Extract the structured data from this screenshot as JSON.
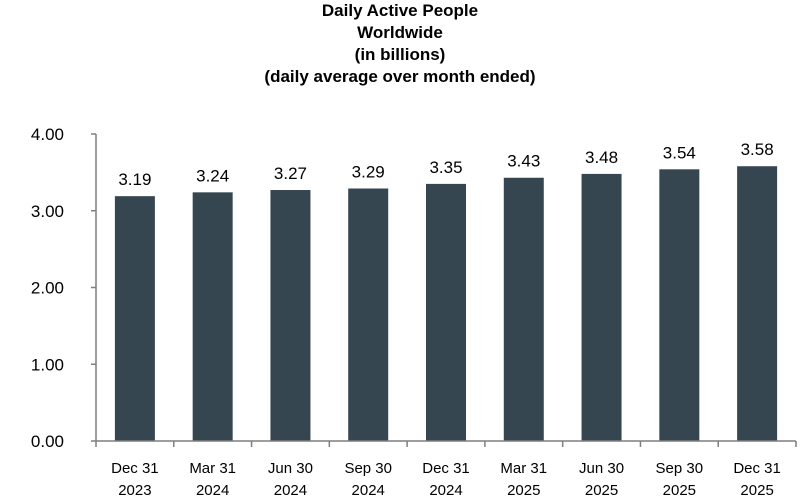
{
  "chart_data": {
    "type": "bar",
    "title": [
      "Daily Active People",
      "Worldwide",
      "(in billions)",
      "(daily average over month ended)"
    ],
    "categories": [
      [
        "Dec 31",
        "2023"
      ],
      [
        "Mar 31",
        "2024"
      ],
      [
        "Jun 30",
        "2024"
      ],
      [
        "Sep 30",
        "2024"
      ],
      [
        "Dec 31",
        "2024"
      ],
      [
        "Mar 31",
        "2025"
      ],
      [
        "Jun 30",
        "2025"
      ],
      [
        "Sep 30",
        "2025"
      ],
      [
        "Dec 31",
        "2025"
      ]
    ],
    "values": [
      3.19,
      3.24,
      3.27,
      3.29,
      3.35,
      3.43,
      3.48,
      3.54,
      3.58
    ],
    "data_labels": [
      "3.19",
      "3.24",
      "3.27",
      "3.29",
      "3.35",
      "3.43",
      "3.48",
      "3.54",
      "3.58"
    ],
    "ylim": [
      0,
      4
    ],
    "yticks": [
      {
        "value": 0,
        "label": "0.00"
      },
      {
        "value": 1,
        "label": "1.00"
      },
      {
        "value": 2,
        "label": "2.00"
      },
      {
        "value": 3,
        "label": "3.00"
      },
      {
        "value": 4,
        "label": "4.00"
      }
    ],
    "xlabel": "",
    "ylabel": "",
    "grid": false,
    "legend": "none",
    "bar_color": "#354651",
    "axis_color": "#7f7f7f"
  }
}
